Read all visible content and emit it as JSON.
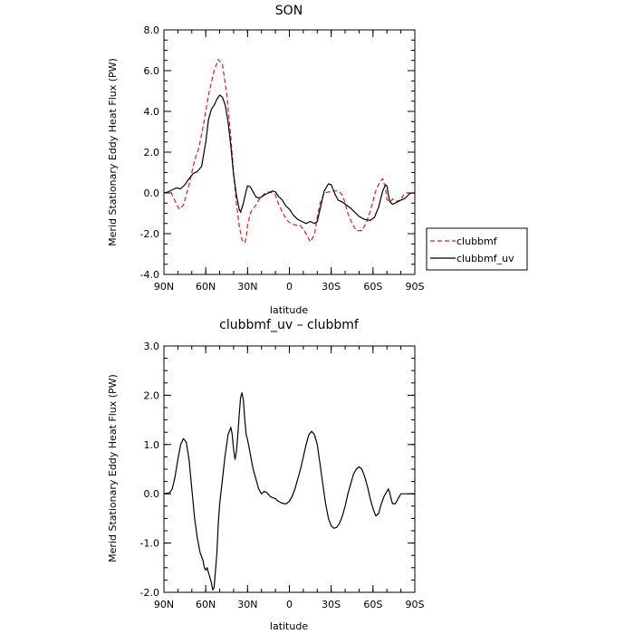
{
  "chart_data": [
    {
      "type": "line",
      "title": "SON",
      "xlabel": "latitude",
      "ylabel": "Merid Stationary Eddy Heat Flux (PW)",
      "xlim": [
        90,
        -90
      ],
      "ylim": [
        -4.0,
        8.0
      ],
      "xticks": [
        {
          "value": 90,
          "label": "90N"
        },
        {
          "value": 60,
          "label": "60N"
        },
        {
          "value": 30,
          "label": "30N"
        },
        {
          "value": 0,
          "label": "0"
        },
        {
          "value": -30,
          "label": "30S"
        },
        {
          "value": -60,
          "label": "60S"
        },
        {
          "value": -90,
          "label": "90S"
        }
      ],
      "yticks": [
        {
          "value": -4.0,
          "label": "-4.0"
        },
        {
          "value": -2.0,
          "label": "-2.0"
        },
        {
          "value": 0.0,
          "label": "0.0"
        },
        {
          "value": 2.0,
          "label": "2.0"
        },
        {
          "value": 4.0,
          "label": "4.0"
        },
        {
          "value": 6.0,
          "label": "6.0"
        },
        {
          "value": 8.0,
          "label": "8.0"
        }
      ],
      "legend": "outside-right",
      "series": [
        {
          "name": "clubbmf",
          "color": "#e31a1c",
          "dash": true,
          "x": [
            90,
            85,
            82,
            79,
            76,
            72,
            68,
            65,
            62,
            58,
            54,
            51,
            48,
            45,
            42,
            40,
            38,
            36,
            34,
            32,
            31,
            30,
            28,
            26,
            24,
            22,
            20,
            18,
            15,
            12,
            10,
            8,
            5,
            2,
            0,
            -3,
            -6,
            -8,
            -12,
            -15,
            -18,
            -20,
            -22,
            -25,
            -28,
            -30,
            -32,
            -35,
            -38,
            -40,
            -42,
            -45,
            -48,
            -52,
            -55,
            -58,
            -60,
            -62,
            -65,
            -67,
            -69,
            -70,
            -71,
            -72,
            -73,
            -74,
            -76,
            -78,
            -80,
            -82,
            -84,
            -86,
            -88,
            -90
          ],
          "y": [
            0,
            0.05,
            -0.4,
            -0.8,
            -0.6,
            0.4,
            1.6,
            2.2,
            3.2,
            4.8,
            6.0,
            6.55,
            6.3,
            4.9,
            2.7,
            1.0,
            -0.5,
            -1.6,
            -2.3,
            -2.45,
            -2.2,
            -1.6,
            -1.0,
            -0.75,
            -0.6,
            -0.35,
            -0.2,
            -0.05,
            0.05,
            0.0,
            -0.1,
            -0.5,
            -0.95,
            -1.3,
            -1.45,
            -1.55,
            -1.6,
            -1.6,
            -2.0,
            -2.4,
            -2.05,
            -1.2,
            -0.5,
            0.0,
            0.05,
            0.05,
            0.1,
            0.1,
            -0.1,
            -0.5,
            -1.0,
            -1.5,
            -1.85,
            -1.85,
            -1.5,
            -0.9,
            -0.4,
            0.1,
            0.55,
            0.7,
            0.2,
            -0.3,
            -0.4,
            -0.45,
            -0.4,
            -0.3,
            -0.35,
            -0.45,
            -0.3,
            -0.1,
            0,
            0,
            0,
            0
          ]
        },
        {
          "name": "clubbmf_uv",
          "color": "#000000",
          "dash": false,
          "x": [
            90,
            87,
            84,
            81,
            78,
            75,
            72,
            69,
            66,
            63,
            60,
            58,
            56,
            54,
            52,
            50,
            48,
            46,
            44,
            42,
            40,
            38,
            36,
            35,
            33,
            31,
            30,
            28,
            26,
            24,
            22,
            20,
            18,
            15,
            12,
            10,
            8,
            5,
            3,
            0,
            -3,
            -6,
            -9,
            -12,
            -15,
            -18,
            -20,
            -22,
            -25,
            -28,
            -30,
            -33,
            -35,
            -38,
            -41,
            -44,
            -47,
            -50,
            -54,
            -58,
            -61,
            -64,
            -67,
            -69,
            -70,
            -71,
            -72,
            -73,
            -74,
            -76,
            -78,
            -80,
            -82,
            -84,
            -86,
            -88,
            -90
          ],
          "y": [
            0,
            0.05,
            0.15,
            0.25,
            0.2,
            0.4,
            0.7,
            0.95,
            1.05,
            1.3,
            2.5,
            3.6,
            4.1,
            4.3,
            4.6,
            4.8,
            4.7,
            4.3,
            3.5,
            2.3,
            0.9,
            -0.1,
            -0.8,
            -0.95,
            -0.5,
            0.1,
            0.35,
            0.3,
            0.05,
            -0.2,
            -0.25,
            -0.2,
            -0.1,
            0.0,
            0.1,
            0.05,
            -0.15,
            -0.35,
            -0.6,
            -0.8,
            -1.1,
            -1.3,
            -1.4,
            -1.5,
            -1.4,
            -1.5,
            -1.4,
            -0.8,
            0.1,
            0.45,
            0.4,
            -0.1,
            -0.35,
            -0.45,
            -0.6,
            -0.75,
            -0.95,
            -1.15,
            -1.3,
            -1.35,
            -1.2,
            -0.7,
            0.1,
            0.4,
            0.35,
            -0.1,
            -0.4,
            -0.5,
            -0.55,
            -0.5,
            -0.4,
            -0.35,
            -0.3,
            -0.2,
            -0.05,
            0,
            0
          ]
        }
      ]
    },
    {
      "type": "line",
      "title": "clubbmf_uv – clubbmf",
      "xlabel": "latitude",
      "ylabel": "Merid Stationary Eddy Heat Flux (PW)",
      "xlim": [
        90,
        -90
      ],
      "ylim": [
        -2.0,
        3.0
      ],
      "xticks": [
        {
          "value": 90,
          "label": "90N"
        },
        {
          "value": 60,
          "label": "60N"
        },
        {
          "value": 30,
          "label": "30N"
        },
        {
          "value": 0,
          "label": "0"
        },
        {
          "value": -30,
          "label": "30S"
        },
        {
          "value": -60,
          "label": "60S"
        },
        {
          "value": -90,
          "label": "90S"
        }
      ],
      "yticks": [
        {
          "value": -2.0,
          "label": "-2.0"
        },
        {
          "value": -1.0,
          "label": "-1.0"
        },
        {
          "value": 0.0,
          "label": "0.0"
        },
        {
          "value": 1.0,
          "label": "1.0"
        },
        {
          "value": 2.0,
          "label": "2.0"
        },
        {
          "value": 3.0,
          "label": "3.0"
        }
      ],
      "series": [
        {
          "color": "#000000",
          "dash": false,
          "x": [
            90,
            86,
            84,
            82,
            80,
            78,
            76,
            74,
            72,
            70,
            68,
            66,
            64,
            62,
            61,
            60,
            59,
            58,
            56,
            55,
            54,
            52,
            51,
            50,
            48,
            46,
            44,
            42,
            41,
            40,
            39,
            38,
            37,
            36,
            35,
            34,
            33,
            32,
            31,
            30,
            29,
            28,
            26,
            24,
            22,
            20,
            18,
            16,
            14,
            12,
            10,
            8,
            6,
            4,
            2,
            0,
            -2,
            -4,
            -6,
            -8,
            -10,
            -12,
            -14,
            -16,
            -18,
            -20,
            -22,
            -24,
            -26,
            -28,
            -30,
            -32,
            -34,
            -36,
            -38,
            -40,
            -42,
            -44,
            -46,
            -48,
            -50,
            -52,
            -54,
            -56,
            -58,
            -60,
            -62,
            -64,
            -66,
            -68,
            -70,
            -71,
            -72,
            -73,
            -74,
            -76,
            -78,
            -80,
            -82,
            -84,
            -86,
            -88,
            -90
          ],
          "y": [
            0,
            0.02,
            0.1,
            0.35,
            0.7,
            1.0,
            1.12,
            1.05,
            0.7,
            0.1,
            -0.5,
            -0.9,
            -1.2,
            -1.35,
            -1.5,
            -1.55,
            -1.5,
            -1.6,
            -1.8,
            -1.95,
            -1.9,
            -1.2,
            -0.6,
            -0.2,
            0.3,
            0.8,
            1.2,
            1.35,
            1.2,
            0.9,
            0.7,
            0.85,
            1.2,
            1.6,
            1.95,
            2.05,
            1.9,
            1.5,
            1.2,
            1.1,
            0.95,
            0.8,
            0.5,
            0.3,
            0.1,
            0.0,
            0.05,
            0.02,
            -0.05,
            -0.08,
            -0.1,
            -0.15,
            -0.18,
            -0.2,
            -0.2,
            -0.15,
            -0.05,
            0.1,
            0.3,
            0.5,
            0.75,
            1.0,
            1.2,
            1.27,
            1.2,
            1.0,
            0.6,
            0.2,
            -0.2,
            -0.5,
            -0.65,
            -0.7,
            -0.68,
            -0.6,
            -0.45,
            -0.25,
            0.0,
            0.2,
            0.4,
            0.5,
            0.55,
            0.5,
            0.35,
            0.15,
            -0.1,
            -0.3,
            -0.45,
            -0.4,
            -0.2,
            -0.05,
            0.05,
            0.1,
            0.02,
            -0.1,
            -0.2,
            -0.2,
            -0.1,
            0,
            0,
            0,
            0,
            0,
            0
          ]
        }
      ]
    }
  ]
}
